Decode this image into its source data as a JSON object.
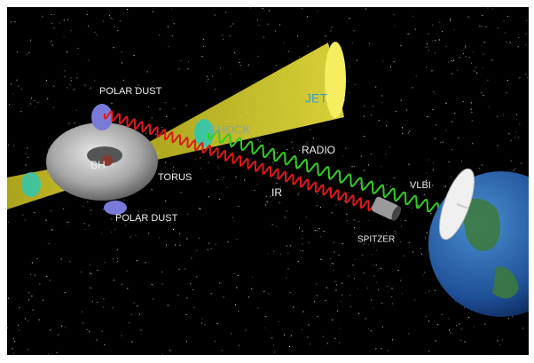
{
  "labels": {
    "polar_dust_top": "POLAR DUST",
    "jet": "JET",
    "shock": "SHOCK",
    "radio": "RADIO",
    "bh": "BH",
    "torus": "TORUS",
    "ir": "IR",
    "vlbi": "VLBI",
    "polar_dust_bottom": "POLAR DUST",
    "spitzer": "SPITZER"
  }
}
